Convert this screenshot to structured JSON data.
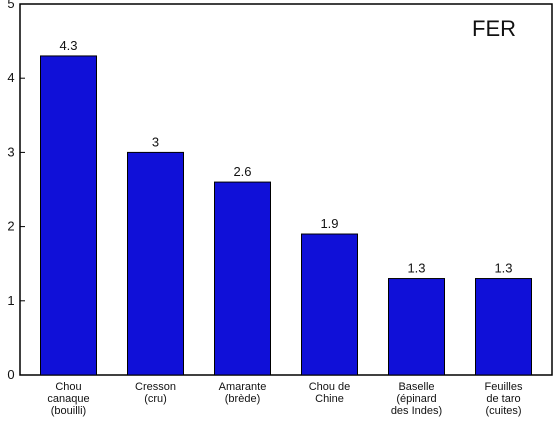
{
  "chart_data": {
    "type": "bar",
    "title": "FER",
    "xlabel": "",
    "ylabel": "",
    "ylim": [
      0,
      5
    ],
    "yticks": [
      "0",
      "1",
      "2",
      "3",
      "4",
      "5"
    ],
    "grid": false,
    "categories": [
      [
        "Chou",
        "canaque",
        "(bouilli)"
      ],
      [
        "Cresson",
        "(cru)"
      ],
      [
        "Amarante",
        "(brède)"
      ],
      [
        "Chou de",
        "Chine"
      ],
      [
        "Baselle",
        "(épinard",
        "des Indes)"
      ],
      [
        "Feuilles",
        "de taro",
        "(cuites)"
      ]
    ],
    "values": [
      4.3,
      3,
      2.6,
      1.9,
      1.3,
      1.3
    ],
    "value_labels": [
      "4.3",
      "3",
      "2.6",
      "1.9",
      "1.3",
      "1.3"
    ],
    "colors": {
      "bar": "#1010d8",
      "bar_border": "#000000",
      "axis": "#000000",
      "text": "#111111"
    }
  }
}
